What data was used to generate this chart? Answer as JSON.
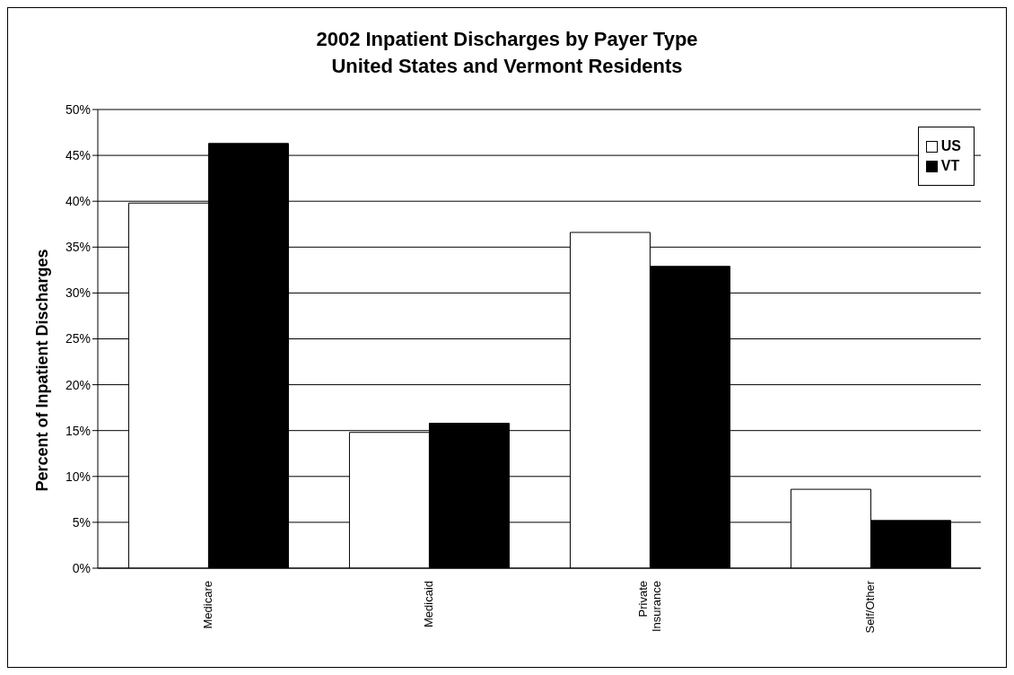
{
  "chart_data": {
    "type": "bar",
    "title": "2002 Inpatient Discharges by Payer Type\nUnited States and Vermont Residents",
    "ylabel": "Percent of Inpatient Discharges",
    "categories": [
      "Medicare",
      "Medicaid",
      "Private Insurance",
      "Self/Other"
    ],
    "series": [
      {
        "name": "US",
        "color": "#ffffff",
        "values": [
          39.8,
          14.8,
          36.6,
          8.6
        ]
      },
      {
        "name": "VT",
        "color": "#000000",
        "values": [
          46.3,
          15.8,
          32.9,
          5.2
        ]
      }
    ],
    "ylim": [
      0,
      50
    ],
    "yticks": [
      {
        "value": 0,
        "label": "0%"
      },
      {
        "value": 5,
        "label": "5%"
      },
      {
        "value": 10,
        "label": "10%"
      },
      {
        "value": 15,
        "label": "15%"
      },
      {
        "value": 20,
        "label": "20%"
      },
      {
        "value": 25,
        "label": "25%"
      },
      {
        "value": 30,
        "label": "30%"
      },
      {
        "value": 35,
        "label": "35%"
      },
      {
        "value": 40,
        "label": "40%"
      },
      {
        "value": 45,
        "label": "45%"
      },
      {
        "value": 50,
        "label": "50%"
      }
    ],
    "grid": "y",
    "legend": "top right"
  }
}
